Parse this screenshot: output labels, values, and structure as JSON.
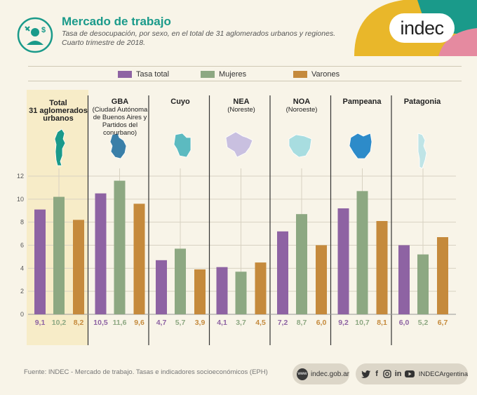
{
  "header": {
    "title": "Mercado de trabajo",
    "subtitle": "Tasa de desocupación, por sexo, en el total de 31 aglomerados urbanos y regiones. Cuarto trimestre de 2018.",
    "brand": "indec"
  },
  "legend": [
    {
      "label": "Tasa total",
      "color": "#8e63a3"
    },
    {
      "label": "Mujeres",
      "color": "#8da882"
    },
    {
      "label": "Varones",
      "color": "#c58a3c"
    }
  ],
  "regions": [
    {
      "name": "Total\n31 aglomerados\nurbanos",
      "sub": ""
    },
    {
      "name": "GBA",
      "sub": "(Ciudad Autónoma de Buenos Aires y Partidos del conurbano)"
    },
    {
      "name": "Cuyo",
      "sub": ""
    },
    {
      "name": "NEA",
      "sub": "(Noreste)"
    },
    {
      "name": "NOA",
      "sub": "(Noroeste)"
    },
    {
      "name": "Pampeana",
      "sub": ""
    },
    {
      "name": "Patagonia",
      "sub": ""
    }
  ],
  "chart_data": {
    "type": "bar",
    "categories": [
      "Total 31 aglomerados urbanos",
      "GBA",
      "Cuyo",
      "NEA",
      "NOA",
      "Pampeana",
      "Patagonia"
    ],
    "series": [
      {
        "name": "Tasa total",
        "values": [
          9.1,
          10.5,
          4.7,
          4.1,
          7.2,
          9.2,
          6.0
        ],
        "labels": [
          "9,1",
          "10,5",
          "4,7",
          "4,1",
          "7,2",
          "9,2",
          "6,0"
        ]
      },
      {
        "name": "Mujeres",
        "values": [
          10.2,
          11.6,
          5.7,
          3.7,
          8.7,
          10.7,
          5.2
        ],
        "labels": [
          "10,2",
          "11,6",
          "5,7",
          "3,7",
          "8,7",
          "10,7",
          "5,2"
        ]
      },
      {
        "name": "Varones",
        "values": [
          8.2,
          9.6,
          3.9,
          4.5,
          6.0,
          8.1,
          6.7
        ],
        "labels": [
          "8,2",
          "9,6",
          "3,9",
          "4,5",
          "6,0",
          "8,1",
          "6,7"
        ]
      }
    ],
    "yticks": [
      "0",
      "2",
      "4",
      "6",
      "8",
      "10",
      "12"
    ],
    "ylim": [
      0,
      12
    ],
    "grid": true,
    "legend_position": "top"
  },
  "footer": {
    "source": "Fuente: INDEC - Mercado de trabajo. Tasas e indicadores socioeconómicos (EPH)",
    "web": "indec.gob.ar",
    "web_icon": "www",
    "social_handle": "INDECArgentina",
    "social_icons": [
      "twitter-icon",
      "facebook-icon",
      "instagram-icon",
      "linkedin-icon",
      "youtube-icon"
    ]
  }
}
